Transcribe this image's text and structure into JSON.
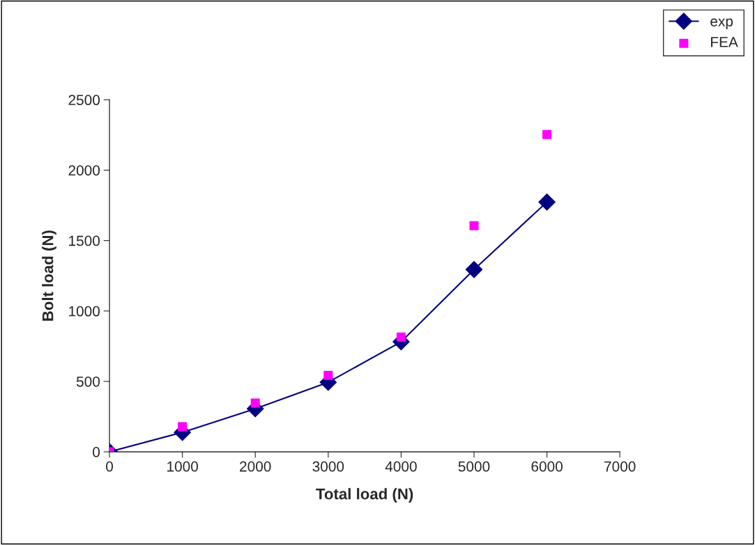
{
  "chart_data": {
    "type": "line",
    "xlabel": "Total load (N)",
    "ylabel": "Bolt load (N)",
    "x": [
      0,
      1000,
      2000,
      3000,
      4000,
      5000,
      6000
    ],
    "series": [
      {
        "name": "exp",
        "type": "line",
        "color": "#000080",
        "marker": "diamond",
        "line_style": "solid",
        "values": [
          0,
          138,
          306,
          494,
          781,
          1294,
          1774
        ]
      },
      {
        "name": "FEA",
        "type": "scatter",
        "color": "#ff00ff",
        "marker": "square",
        "values": [
          0,
          178,
          346,
          543,
          815,
          1606,
          2253
        ]
      }
    ],
    "xlim": [
      0,
      7000
    ],
    "xticks": [
      0,
      1000,
      2000,
      3000,
      4000,
      5000,
      6000,
      7000
    ],
    "ylim": [
      0,
      2500
    ],
    "yticks": [
      0,
      500,
      1000,
      1500,
      2000,
      2500
    ],
    "grid": false,
    "legend": "top right"
  }
}
